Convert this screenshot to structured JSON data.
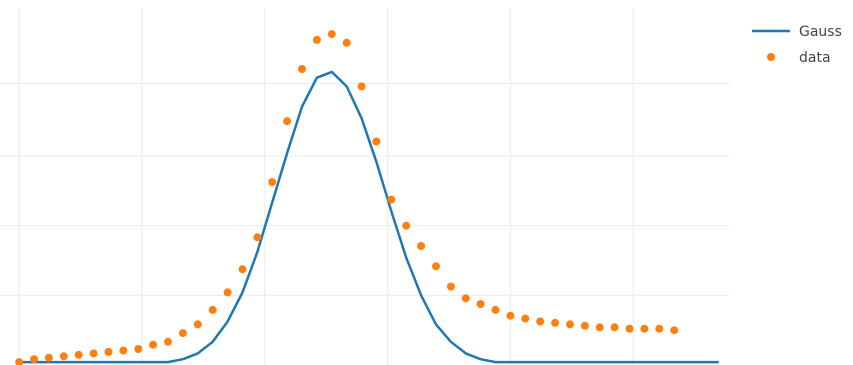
{
  "chart_data": {
    "type": "line",
    "grid": true,
    "legend_position": "top-right",
    "colors": {
      "gauss": "#1f77b4",
      "data": "#ff7f0e",
      "grid": "#ebebeb"
    },
    "series": [
      {
        "name": "Gauss",
        "kind": "line",
        "color": "#1f77b4",
        "x": [
          0,
          2,
          4,
          6,
          8,
          10,
          12,
          14,
          16,
          18,
          20,
          22,
          24,
          26,
          28,
          30,
          32,
          34,
          36,
          38,
          40,
          42,
          44,
          46,
          48,
          50,
          52,
          54,
          56,
          58,
          60,
          62,
          64,
          66,
          68,
          70,
          72,
          74,
          76,
          78,
          80,
          82,
          84,
          86,
          88,
          90,
          92,
          94
        ],
        "y": [
          0.0,
          0.0,
          0.0,
          0.0,
          0.0,
          0.0,
          0.0,
          0.0,
          0.0,
          0.0,
          0.0,
          0.01,
          0.03,
          0.07,
          0.14,
          0.24,
          0.38,
          0.55,
          0.72,
          0.88,
          0.98,
          1.0,
          0.95,
          0.84,
          0.69,
          0.52,
          0.36,
          0.23,
          0.13,
          0.07,
          0.03,
          0.01,
          0.0,
          0.0,
          0.0,
          0.0,
          0.0,
          0.0,
          0.0,
          0.0,
          0.0,
          0.0,
          0.0,
          0.0,
          0.0,
          0.0,
          0.0,
          0.0
        ]
      },
      {
        "name": "data",
        "kind": "markers",
        "color": "#ff7f0e",
        "x": [
          0,
          2,
          4,
          6,
          8,
          10,
          12,
          14,
          16,
          18,
          20,
          22,
          24,
          26,
          28,
          30,
          32,
          34,
          36,
          38,
          40,
          42,
          44,
          46,
          48,
          50,
          52,
          54,
          56,
          58,
          60,
          62,
          64,
          66,
          68,
          70,
          72,
          74,
          76,
          78,
          80,
          82,
          84,
          86,
          88
        ],
        "y": [
          0.0,
          0.01,
          0.015,
          0.02,
          0.025,
          0.03,
          0.035,
          0.04,
          0.045,
          0.06,
          0.07,
          0.1,
          0.13,
          0.18,
          0.24,
          0.32,
          0.43,
          0.62,
          0.83,
          1.01,
          1.11,
          1.13,
          1.1,
          0.95,
          0.76,
          0.56,
          0.47,
          0.4,
          0.33,
          0.26,
          0.22,
          0.2,
          0.18,
          0.16,
          0.15,
          0.14,
          0.135,
          0.13,
          0.125,
          0.12,
          0.12,
          0.115,
          0.115,
          0.115,
          0.11
        ]
      }
    ],
    "xlim": [
      -1.5,
      95.5
    ],
    "ylim": [
      -0.01,
      1.22
    ],
    "x_gridlines": [
      0,
      16.5,
      33,
      49.5,
      66,
      82.5
    ],
    "y_gridlines": [
      0.23,
      0.47,
      0.71,
      0.96
    ]
  }
}
